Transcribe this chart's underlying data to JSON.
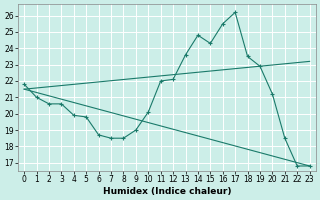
{
  "xlabel": "Humidex (Indice chaleur)",
  "bg_color": "#cceee8",
  "grid_color": "#ffffff",
  "line_color": "#1a7a6a",
  "xlim": [
    -0.5,
    23.5
  ],
  "ylim": [
    16.5,
    26.7
  ],
  "yticks": [
    17,
    18,
    19,
    20,
    21,
    22,
    23,
    24,
    25,
    26
  ],
  "xticks": [
    0,
    1,
    2,
    3,
    4,
    5,
    6,
    7,
    8,
    9,
    10,
    11,
    12,
    13,
    14,
    15,
    16,
    17,
    18,
    19,
    20,
    21,
    22,
    23
  ],
  "line1_x": [
    0,
    1,
    2,
    3,
    4,
    5,
    6,
    7,
    8,
    9,
    10,
    11,
    12,
    13,
    14,
    15,
    16,
    17,
    18,
    19,
    20,
    21,
    22,
    23
  ],
  "line1_y": [
    21.8,
    21.0,
    20.6,
    20.6,
    19.9,
    19.8,
    18.7,
    18.5,
    18.5,
    19.0,
    20.1,
    22.0,
    22.1,
    23.6,
    24.8,
    24.3,
    25.5,
    26.2,
    23.5,
    22.9,
    21.2,
    18.5,
    16.8,
    16.8
  ],
  "line2_x": [
    0,
    23
  ],
  "line2_y": [
    21.5,
    23.2
  ],
  "line3_x": [
    0,
    23
  ],
  "line3_y": [
    21.5,
    16.8
  ],
  "tick_fontsize": 5.5,
  "xlabel_fontsize": 6.5
}
